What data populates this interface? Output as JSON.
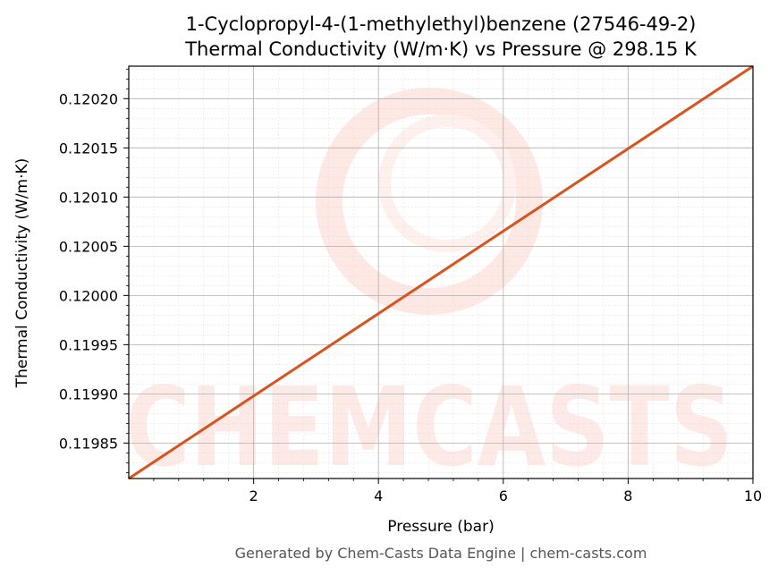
{
  "chart_data": {
    "type": "line",
    "title": "1-Cyclopropyl-4-(1-methylethyl)benzene (27546-49-2)",
    "subtitle": "Thermal Conductivity (W/m·K) vs Pressure @ 298.15 K",
    "xlabel": "Pressure (bar)",
    "ylabel": "Thermal Conductivity (W/m·K)",
    "xlim": [
      0.0,
      10.0
    ],
    "ylim": [
      0.119814,
      0.120233
    ],
    "x_ticks": [
      2,
      4,
      6,
      8,
      10
    ],
    "x_tick_labels": [
      "2",
      "4",
      "6",
      "8",
      "10"
    ],
    "y_ticks": [
      0.11985,
      0.1199,
      0.11995,
      0.12,
      0.12005,
      0.1201,
      0.12015,
      0.1202
    ],
    "y_tick_labels": [
      "0.11985",
      "0.11990",
      "0.11995",
      "0.12000",
      "0.12005",
      "0.12010",
      "0.12015",
      "0.12020"
    ],
    "grid": true,
    "series": [
      {
        "color": "#d9531e",
        "x": [
          0.0,
          10.0
        ],
        "y": [
          0.119814,
          0.120233
        ]
      }
    ],
    "watermark": "CHEMCASTS"
  },
  "footer": "Generated by Chem-Casts Data Engine | chem-casts.com",
  "colors": {
    "line": "#d9531e",
    "watermark": "#fde3df",
    "grid": "#b0b0b0"
  }
}
